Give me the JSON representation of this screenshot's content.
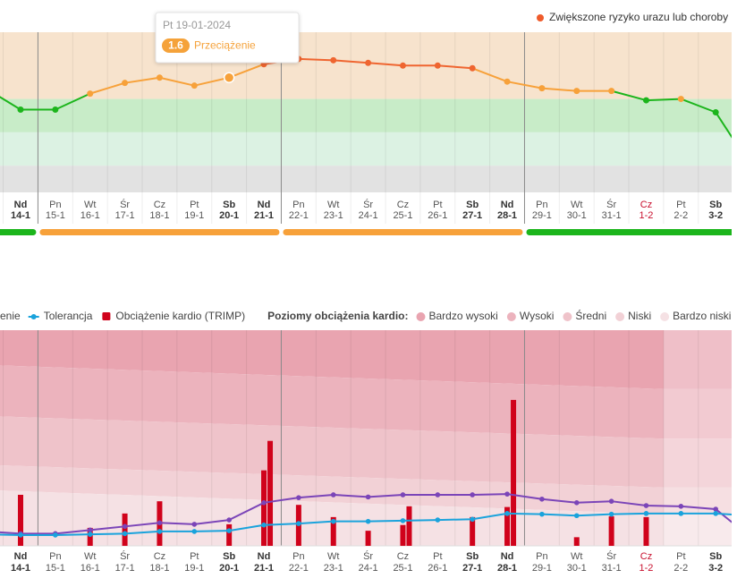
{
  "chart_data": [
    {
      "type": "line",
      "legend": {
        "label": "Zwiększone ryzyko urazu lub choroby",
        "color": "#ef5b2b"
      },
      "tooltip": {
        "title": "Pt 19-01-2024",
        "label": "Przeciążenie",
        "color": "#f5a23a"
      },
      "weekdays": [
        null,
        "Nd",
        "Pn",
        "Wt",
        "Śr",
        "Cz",
        "Pt",
        "Sb",
        "Nd",
        "Pn",
        "Wt",
        "Śr",
        "Cz",
        "Pt",
        "Sb",
        "Nd",
        "Pn",
        "Wt",
        "Śr",
        "Cz",
        "Pt",
        "Sb",
        null
      ],
      "categories": [
        null,
        "14-1",
        "15-1",
        "16-1",
        "17-1",
        "18-1",
        "19-1",
        "20-1",
        "21-1",
        "22-1",
        "23-1",
        "24-1",
        "25-1",
        "26-1",
        "27-1",
        "28-1",
        "29-1",
        "30-1",
        "31-1",
        "1-2",
        "2-2",
        "3-2",
        null
      ],
      "bold_indices": [
        1,
        7,
        8,
        14,
        15,
        21
      ],
      "red_indices": [
        19
      ],
      "ylim": [
        0.8,
        2.0
      ],
      "bands": [
        {
          "from": 1.5,
          "to": 2.0,
          "color": "#f7e3cd"
        },
        {
          "from": 1.25,
          "to": 1.5,
          "color": "#c8ecc8"
        },
        {
          "from": 1.0,
          "to": 1.25,
          "color": "#dcf2e3"
        },
        {
          "from": 0.8,
          "to": 1.0,
          "color": "#e2e2e2"
        }
      ],
      "thresholds": [
        1.5,
        1.7
      ],
      "line_colors": [
        "#1cb51c",
        "#f7a13a",
        "#ef6530"
      ],
      "series": [
        {
          "values": [
            1.58,
            1.42,
            1.42,
            1.54,
            1.62,
            1.66,
            1.6,
            1.66,
            1.76,
            1.8,
            1.79,
            1.77,
            1.75,
            1.75,
            1.73,
            1.63,
            1.58,
            1.56,
            1.56,
            1.49,
            1.5,
            1.4,
            1.0
          ]
        }
      ],
      "week_status": [
        {
          "from": 0,
          "to": 1,
          "color": "#1cb51c"
        },
        {
          "from": 2,
          "to": 8,
          "color": "#f7a13a"
        },
        {
          "from": 9,
          "to": 15,
          "color": "#f7a13a"
        },
        {
          "from": 16,
          "to": 22,
          "color": "#1cb51c"
        }
      ]
    },
    {
      "type": "bar",
      "weekdays": [
        null,
        "Nd",
        "Pn",
        "Wt",
        "Śr",
        "Cz",
        "Pt",
        "Sb",
        "Nd",
        "Pn",
        "Wt",
        "Śr",
        "Cz",
        "Pt",
        "Sb",
        "Nd",
        "Pn",
        "Wt",
        "Śr",
        "Cz",
        "Pt",
        "Sb",
        null
      ],
      "categories": [
        null,
        "14-1",
        "15-1",
        "16-1",
        "17-1",
        "18-1",
        "19-1",
        "20-1",
        "21-1",
        "22-1",
        "23-1",
        "24-1",
        "25-1",
        "26-1",
        "27-1",
        "28-1",
        "29-1",
        "30-1",
        "31-1",
        "1-2",
        "2-2",
        "3-2",
        null
      ],
      "bold_indices": [
        1,
        7,
        8,
        14,
        15,
        21
      ],
      "red_indices": [
        19
      ],
      "ylim": [
        0,
        300
      ],
      "future_from_index": 20,
      "legend_title": "Poziomy obciążenia kardio:",
      "levels": [
        {
          "name": "Bardzo wysoki",
          "color": "#e9a4b0",
          "lower": [
            251,
            218
          ]
        },
        {
          "name": "Wysoki",
          "color": "#ecb3bd",
          "lower": [
            180,
            149
          ]
        },
        {
          "name": "Średni",
          "color": "#efc3ca",
          "lower": [
            112,
            81
          ]
        },
        {
          "name": "Niski",
          "color": "#f2d1d6",
          "lower": [
            77,
            44
          ]
        },
        {
          "name": "Bardzo niski",
          "color": "#f5e1e4",
          "lower": [
            0,
            0
          ]
        }
      ],
      "series": [
        {
          "name": "enie",
          "type": "line",
          "color": "#7b45b8",
          "values": [
            20,
            17,
            17,
            22,
            27,
            32,
            30,
            36,
            60,
            67,
            71,
            68,
            71,
            71,
            71,
            72,
            65,
            60,
            62,
            56,
            55,
            51,
            12
          ]
        },
        {
          "name": "Tolerancja",
          "type": "line",
          "color": "#1aa3dc",
          "values": [
            16,
            15,
            15,
            16,
            17,
            20,
            20,
            21,
            29,
            31,
            34,
            34,
            35,
            36,
            37,
            45,
            44,
            42,
            44,
            45,
            45,
            45,
            42
          ]
        },
        {
          "name": "Obciążenie kardio (TRIMP)",
          "type": "bar",
          "color": "#d0021b",
          "values": [
            [],
            [
              71
            ],
            [],
            [
              25
            ],
            [
              45
            ],
            [
              62
            ],
            [],
            [
              30
            ],
            [
              105,
              146
            ],
            [
              57
            ],
            [
              40
            ],
            [
              21
            ],
            [
              29,
              55
            ],
            [],
            [
              40
            ],
            [
              54,
              203
            ],
            [],
            [
              12
            ],
            [
              41
            ],
            [
              40
            ],
            [],
            [],
            []
          ]
        }
      ]
    }
  ]
}
